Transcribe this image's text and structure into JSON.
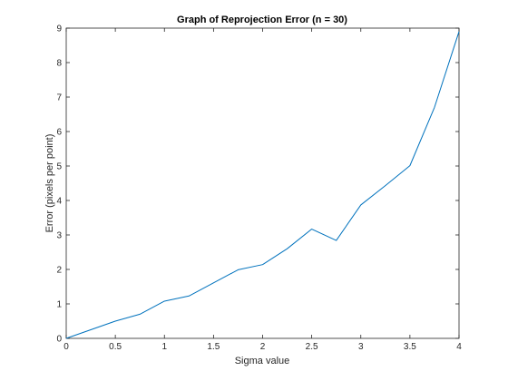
{
  "chart_data": {
    "type": "line",
    "title": "Graph of Reprojection Error (n = 30)",
    "xlabel": "Sigma value",
    "ylabel": "Error (pixels per point)",
    "xlim": [
      0,
      4
    ],
    "ylim": [
      0,
      9
    ],
    "xticks": [
      0,
      0.5,
      1,
      1.5,
      2,
      2.5,
      3,
      3.5,
      4
    ],
    "xtick_labels": [
      "0",
      "0.5",
      "1",
      "1.5",
      "2",
      "2.5",
      "3",
      "3.5",
      "4"
    ],
    "yticks": [
      0,
      1,
      2,
      3,
      4,
      5,
      6,
      7,
      8,
      9
    ],
    "ytick_labels": [
      "0",
      "1",
      "2",
      "3",
      "4",
      "5",
      "6",
      "7",
      "8",
      "9"
    ],
    "grid": false,
    "legend": null,
    "series": [
      {
        "color": "#0072bd",
        "x": [
          0,
          0.25,
          0.5,
          0.75,
          1,
          1.25,
          1.5,
          1.75,
          2,
          2.25,
          2.5,
          2.75,
          3,
          3.25,
          3.5,
          3.75,
          4
        ],
        "y": [
          0,
          0.25,
          0.5,
          0.7,
          1.08,
          1.23,
          1.61,
          1.99,
          2.14,
          2.6,
          3.17,
          2.84,
          3.87,
          4.43,
          5.01,
          6.7,
          8.9
        ]
      }
    ]
  }
}
